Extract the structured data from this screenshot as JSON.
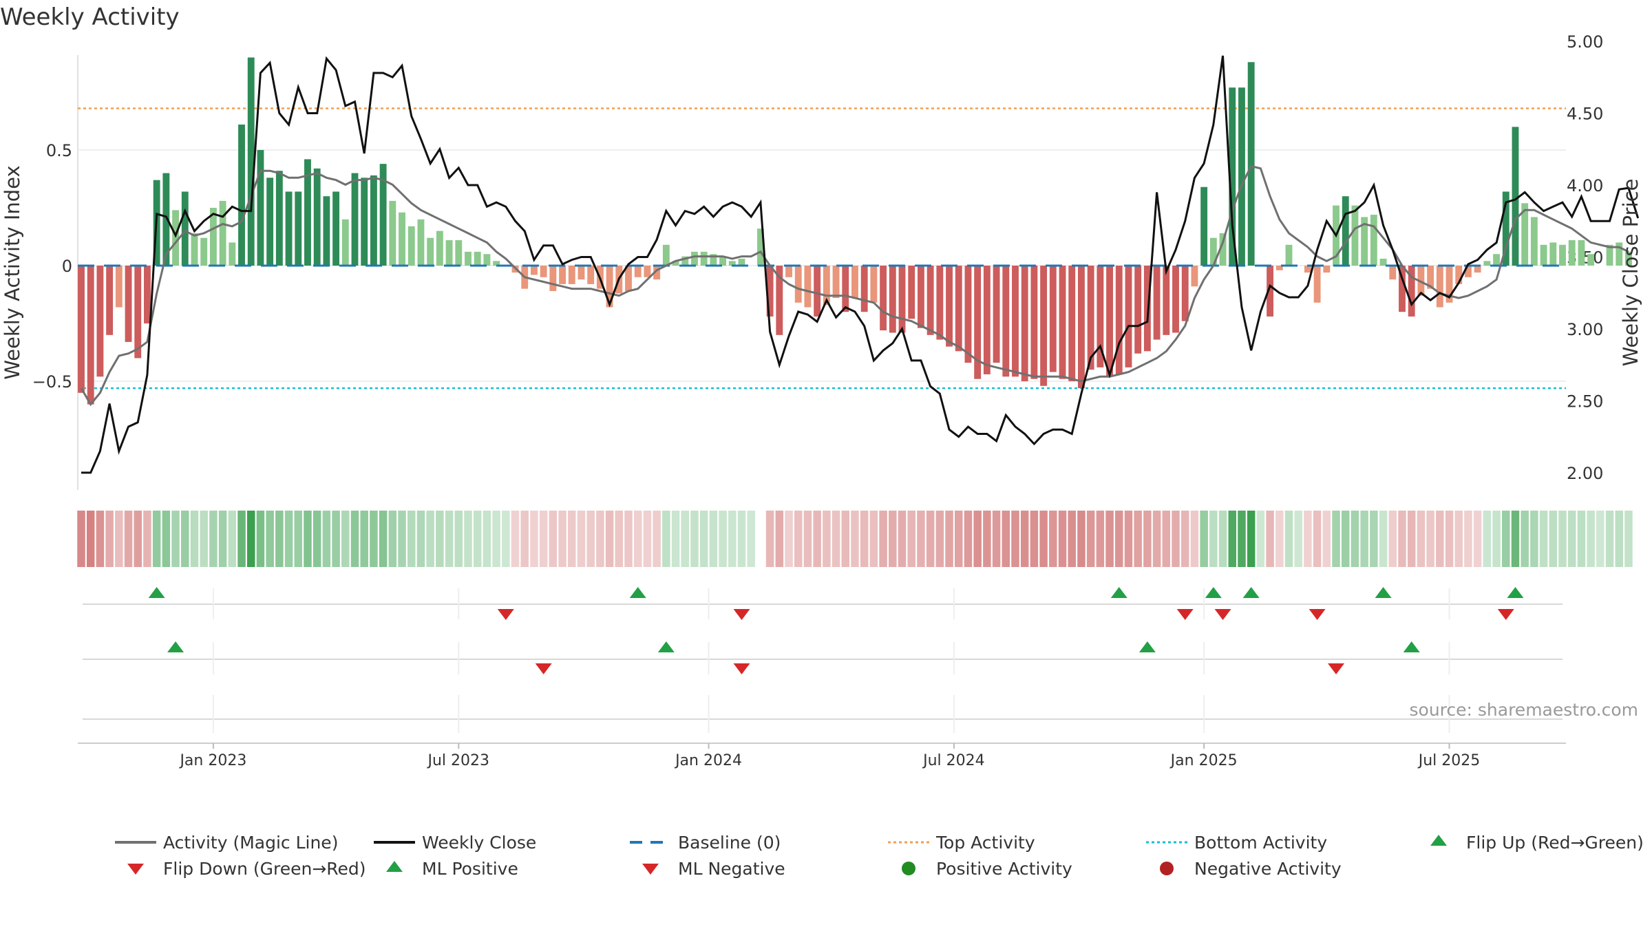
{
  "chart_data": {
    "type": "bar",
    "title": "Weekly Activity",
    "ylabel_left": "Weekly Activity Index",
    "ylabel_right": "Weekly Close Price",
    "source": "source: sharemaestro.com",
    "y_left_range": [
      -0.97,
      0.97
    ],
    "y_left_ticks": [
      {
        "v": 0.5,
        "label": "0.5"
      },
      {
        "v": 0,
        "label": "0"
      },
      {
        "v": -0.5,
        "label": "−0.5"
      }
    ],
    "y_right_range": [
      1.88,
      5.0
    ],
    "y_right_ticks": [
      {
        "v": 5.0,
        "label": "5.00"
      },
      {
        "v": 4.5,
        "label": "4.50"
      },
      {
        "v": 4.0,
        "label": "4.00"
      },
      {
        "v": 3.5,
        "label": "3.50"
      },
      {
        "v": 3.0,
        "label": "3.00"
      },
      {
        "v": 2.5,
        "label": "2.50"
      },
      {
        "v": 2.0,
        "label": "2.00"
      }
    ],
    "x_range_week": [
      0,
      157
    ],
    "x_ticks": [
      {
        "week": 14,
        "label": "Jan 2023"
      },
      {
        "week": 40,
        "label": "Jul 2023"
      },
      {
        "week": 66.5,
        "label": "Jan 2024"
      },
      {
        "week": 92.5,
        "label": "Jul 2024"
      },
      {
        "week": 119,
        "label": "Jan 2025"
      },
      {
        "week": 145,
        "label": "Jul 2025"
      }
    ],
    "top_activity": 0.68,
    "bottom_activity": -0.53,
    "colors": {
      "pos_strong": "#2e8b57",
      "pos_weak": "#8cc98c",
      "neg_strong": "#cd5c5c",
      "neg_weak": "#e9967a",
      "close": "#111111",
      "magic": "#707070",
      "baseline": "#1f77b4",
      "top": "#f0a050",
      "bottom": "#17becf",
      "flip_up": "#22a045",
      "flip_down": "#d62728",
      "positive_dot": "#228b22",
      "negative_dot": "#b22222"
    },
    "activity": [
      -0.55,
      -0.6,
      -0.48,
      -0.3,
      -0.18,
      -0.33,
      -0.4,
      -0.25,
      0.37,
      0.4,
      0.24,
      0.32,
      0.14,
      0.12,
      0.25,
      0.28,
      0.1,
      0.61,
      0.9,
      0.5,
      0.38,
      0.41,
      0.32,
      0.32,
      0.46,
      0.42,
      0.3,
      0.32,
      0.2,
      0.4,
      0.38,
      0.39,
      0.44,
      0.28,
      0.23,
      0.17,
      0.2,
      0.12,
      0.15,
      0.11,
      0.11,
      0.06,
      0.06,
      0.05,
      0.02,
      0.0,
      -0.03,
      -0.1,
      -0.04,
      -0.05,
      -0.11,
      -0.08,
      -0.08,
      -0.06,
      -0.08,
      -0.1,
      -0.18,
      -0.12,
      -0.11,
      -0.05,
      -0.05,
      -0.06,
      0.09,
      0.02,
      0.04,
      0.06,
      0.06,
      0.05,
      0.04,
      0.02,
      0.03,
      0.0,
      0.16,
      -0.22,
      -0.3,
      -0.05,
      -0.16,
      -0.18,
      -0.22,
      -0.17,
      -0.14,
      -0.2,
      -0.14,
      -0.2,
      -0.16,
      -0.28,
      -0.29,
      -0.29,
      -0.23,
      -0.27,
      -0.3,
      -0.32,
      -0.35,
      -0.37,
      -0.42,
      -0.49,
      -0.47,
      -0.42,
      -0.48,
      -0.48,
      -0.5,
      -0.49,
      -0.52,
      -0.46,
      -0.49,
      -0.5,
      -0.53,
      -0.45,
      -0.44,
      -0.48,
      -0.47,
      -0.44,
      -0.38,
      -0.37,
      -0.32,
      -0.3,
      -0.29,
      -0.24,
      -0.09,
      0.34,
      0.12,
      0.14,
      0.77,
      0.77,
      0.88,
      0.0,
      -0.22,
      -0.02,
      0.09,
      0.0,
      -0.03,
      -0.16,
      -0.03,
      0.26,
      0.3,
      0.26,
      0.21,
      0.22,
      0.03,
      -0.06,
      -0.2,
      -0.22,
      -0.13,
      -0.1,
      -0.18,
      -0.16,
      -0.08,
      -0.05,
      -0.03,
      0.02,
      0.05,
      0.32,
      0.6,
      0.27,
      0.21,
      0.09,
      0.1,
      0.09,
      0.11,
      0.11,
      0.05,
      0.0,
      0.09,
      0.1,
      0.06
    ],
    "magic_line": [
      -0.53,
      -0.6,
      -0.55,
      -0.46,
      -0.39,
      -0.38,
      -0.36,
      -0.33,
      -0.12,
      0.05,
      0.1,
      0.15,
      0.13,
      0.14,
      0.16,
      0.18,
      0.17,
      0.19,
      0.3,
      0.41,
      0.41,
      0.4,
      0.38,
      0.38,
      0.39,
      0.4,
      0.38,
      0.37,
      0.35,
      0.37,
      0.37,
      0.38,
      0.37,
      0.35,
      0.31,
      0.27,
      0.24,
      0.22,
      0.2,
      0.18,
      0.16,
      0.14,
      0.12,
      0.1,
      0.06,
      0.03,
      -0.01,
      -0.05,
      -0.06,
      -0.07,
      -0.08,
      -0.09,
      -0.1,
      -0.1,
      -0.1,
      -0.11,
      -0.12,
      -0.13,
      -0.11,
      -0.1,
      -0.06,
      -0.02,
      0.0,
      0.02,
      0.03,
      0.04,
      0.04,
      0.04,
      0.04,
      0.03,
      0.04,
      0.04,
      0.06,
      0.0,
      -0.05,
      -0.08,
      -0.1,
      -0.11,
      -0.12,
      -0.13,
      -0.13,
      -0.13,
      -0.14,
      -0.15,
      -0.16,
      -0.2,
      -0.22,
      -0.23,
      -0.24,
      -0.26,
      -0.28,
      -0.3,
      -0.33,
      -0.35,
      -0.38,
      -0.41,
      -0.43,
      -0.44,
      -0.45,
      -0.46,
      -0.47,
      -0.48,
      -0.48,
      -0.48,
      -0.48,
      -0.49,
      -0.5,
      -0.49,
      -0.48,
      -0.48,
      -0.47,
      -0.46,
      -0.44,
      -0.42,
      -0.4,
      -0.37,
      -0.32,
      -0.26,
      -0.14,
      -0.06,
      0.0,
      0.1,
      0.24,
      0.35,
      0.43,
      0.42,
      0.3,
      0.2,
      0.14,
      0.11,
      0.08,
      0.04,
      0.02,
      0.04,
      0.1,
      0.16,
      0.18,
      0.17,
      0.12,
      0.07,
      0.0,
      -0.05,
      -0.07,
      -0.09,
      -0.12,
      -0.13,
      -0.14,
      -0.13,
      -0.11,
      -0.09,
      -0.06,
      0.08,
      0.2,
      0.24,
      0.24,
      0.22,
      0.2,
      0.18,
      0.16,
      0.13,
      0.1,
      0.09,
      0.08,
      0.08,
      0.06
    ],
    "weekly_close": [
      2.0,
      2.0,
      2.15,
      2.48,
      2.15,
      2.32,
      2.35,
      2.68,
      3.8,
      3.78,
      3.65,
      3.82,
      3.68,
      3.75,
      3.8,
      3.78,
      3.85,
      3.82,
      3.82,
      4.78,
      4.85,
      4.5,
      4.42,
      4.68,
      4.5,
      4.5,
      4.88,
      4.8,
      4.55,
      4.58,
      4.22,
      4.78,
      4.78,
      4.75,
      4.83,
      4.48,
      4.32,
      4.15,
      4.25,
      4.05,
      4.12,
      4.0,
      4.0,
      3.85,
      3.88,
      3.85,
      3.75,
      3.68,
      3.48,
      3.58,
      3.58,
      3.45,
      3.48,
      3.5,
      3.5,
      3.35,
      3.17,
      3.35,
      3.45,
      3.5,
      3.5,
      3.62,
      3.82,
      3.72,
      3.82,
      3.8,
      3.85,
      3.78,
      3.85,
      3.88,
      3.85,
      3.78,
      3.88,
      2.98,
      2.75,
      2.95,
      3.12,
      3.1,
      3.05,
      3.2,
      3.08,
      3.15,
      3.12,
      3.02,
      2.78,
      2.85,
      2.9,
      3.0,
      2.78,
      2.78,
      2.6,
      2.55,
      2.3,
      2.25,
      2.32,
      2.27,
      2.27,
      2.22,
      2.4,
      2.32,
      2.27,
      2.2,
      2.27,
      2.3,
      2.3,
      2.27,
      2.55,
      2.8,
      2.88,
      2.68,
      2.9,
      3.02,
      3.02,
      3.05,
      3.95,
      3.4,
      3.55,
      3.75,
      4.05,
      4.15,
      4.42,
      4.9,
      3.72,
      3.15,
      2.85,
      3.12,
      3.3,
      3.25,
      3.22,
      3.22,
      3.3,
      3.55,
      3.75,
      3.65,
      3.8,
      3.82,
      3.88,
      4.0,
      3.72,
      3.55,
      3.35,
      3.17,
      3.25,
      3.2,
      3.25,
      3.22,
      3.32,
      3.45,
      3.48,
      3.55,
      3.6,
      3.88,
      3.9,
      3.95,
      3.88,
      3.82,
      3.85,
      3.88,
      3.78,
      3.92,
      3.75,
      3.75,
      3.75,
      3.97,
      3.98,
      3.77
    ],
    "flip_up_weeks": [
      8,
      59,
      110,
      120,
      124,
      138,
      152
    ],
    "flip_down_weeks": [
      45,
      70,
      117,
      121,
      131,
      151
    ],
    "ml_positive_weeks": [
      10,
      62,
      113,
      141
    ],
    "ml_negative_weeks": [
      49,
      70,
      133
    ],
    "legend": [
      {
        "label": "Activity (Magic Line)",
        "kind": "line",
        "color": "#707070"
      },
      {
        "label": "Weekly Close",
        "kind": "line",
        "color": "#111111"
      },
      {
        "label": "Baseline (0)",
        "kind": "dash",
        "color": "#1f77b4"
      },
      {
        "label": "Top Activity",
        "kind": "dot",
        "color": "#f0a050"
      },
      {
        "label": "Bottom Activity",
        "kind": "dot",
        "color": "#17becf"
      },
      {
        "label": "Flip Up (Red→Green)",
        "kind": "tri-up",
        "color": "#22a045"
      },
      {
        "label": "Flip Down (Green→Red)",
        "kind": "tri-down",
        "color": "#d62728"
      },
      {
        "label": "ML Positive",
        "kind": "tri-up",
        "color": "#22a045"
      },
      {
        "label": "ML Negative",
        "kind": "tri-down",
        "color": "#d62728"
      },
      {
        "label": "Positive Activity",
        "kind": "circle",
        "color": "#228b22"
      },
      {
        "label": "Negative Activity",
        "kind": "circle",
        "color": "#b22222"
      }
    ]
  }
}
